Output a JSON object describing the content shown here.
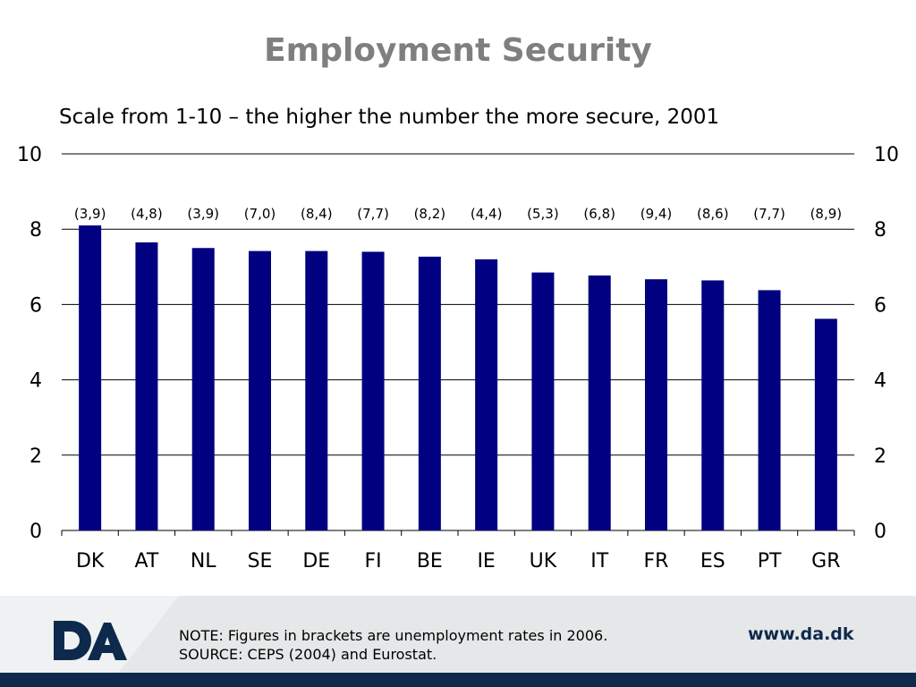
{
  "slide": {
    "title": "Employment Security",
    "subtitle": "Scale from 1-10 – the higher the number the more secure, 2001"
  },
  "chart_data": {
    "type": "bar",
    "categories": [
      "DK",
      "AT",
      "NL",
      "SE",
      "DE",
      "FI",
      "BE",
      "IE",
      "UK",
      "IT",
      "FR",
      "ES",
      "PT",
      "GR"
    ],
    "values": [
      8.1,
      7.65,
      7.5,
      7.42,
      7.42,
      7.4,
      7.27,
      7.2,
      6.85,
      6.77,
      6.67,
      6.64,
      6.38,
      5.62
    ],
    "bar_annotations": [
      "(3,9)",
      "(4,8)",
      "(3,9)",
      "(7,0)",
      "(8,4)",
      "(7,7)",
      "(8,2)",
      "(4,4)",
      "(5,3)",
      "(6,8)",
      "(9,4)",
      "(8,6)",
      "(7,7)",
      "(8,9)"
    ],
    "ylim": [
      0,
      10
    ],
    "yticks": [
      "0",
      "2",
      "4",
      "6",
      "8",
      "10"
    ],
    "secondary_yticks": [
      "0",
      "2",
      "4",
      "6",
      "8",
      "10"
    ],
    "grid": true,
    "bar_color": "#000080"
  },
  "footer": {
    "logo_text": "DA",
    "note_line1": "NOTE: Figures in brackets are unemployment rates in 2006.",
    "note_line2": "SOURCE: CEPS (2004) and Eurostat.",
    "website": "www.da.dk",
    "brand_color": "#0d2a4d"
  }
}
